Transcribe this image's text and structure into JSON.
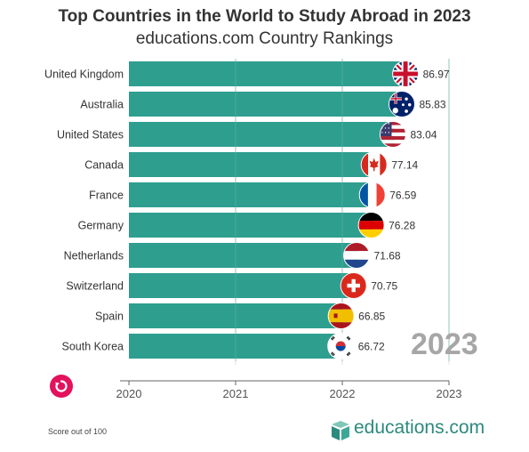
{
  "header": {
    "title": "Top Countries in the World to Study Abroad in 2023",
    "subtitle": "educations.com Country Rankings"
  },
  "chart_data": {
    "type": "bar",
    "orientation": "horizontal",
    "categories": [
      "United Kingdom",
      "Australia",
      "United States",
      "Canada",
      "France",
      "Germany",
      "Netherlands",
      "Switzerland",
      "Spain",
      "South Korea"
    ],
    "values": [
      86.97,
      85.83,
      83.04,
      77.14,
      76.59,
      76.28,
      71.68,
      70.75,
      66.85,
      66.72
    ],
    "flag_icons": [
      "uk-flag-icon",
      "australia-flag-icon",
      "usa-flag-icon",
      "canada-flag-icon",
      "france-flag-icon",
      "germany-flag-icon",
      "netherlands-flag-icon",
      "switzerland-flag-icon",
      "spain-flag-icon",
      "south-korea-flag-icon"
    ],
    "x_ticks": [
      "2020",
      "2021",
      "2022",
      "2023"
    ],
    "xlim": [
      0,
      100
    ],
    "current_year": "2023",
    "bar_color": "#2e9e8f",
    "grid": true
  },
  "footer": {
    "note": "Score out of 100",
    "logo_text": "educations.com",
    "logo_color": "#2b8a7e"
  },
  "controls": {
    "replay_icon": "replay-icon",
    "replay_color": "#e3125d"
  }
}
